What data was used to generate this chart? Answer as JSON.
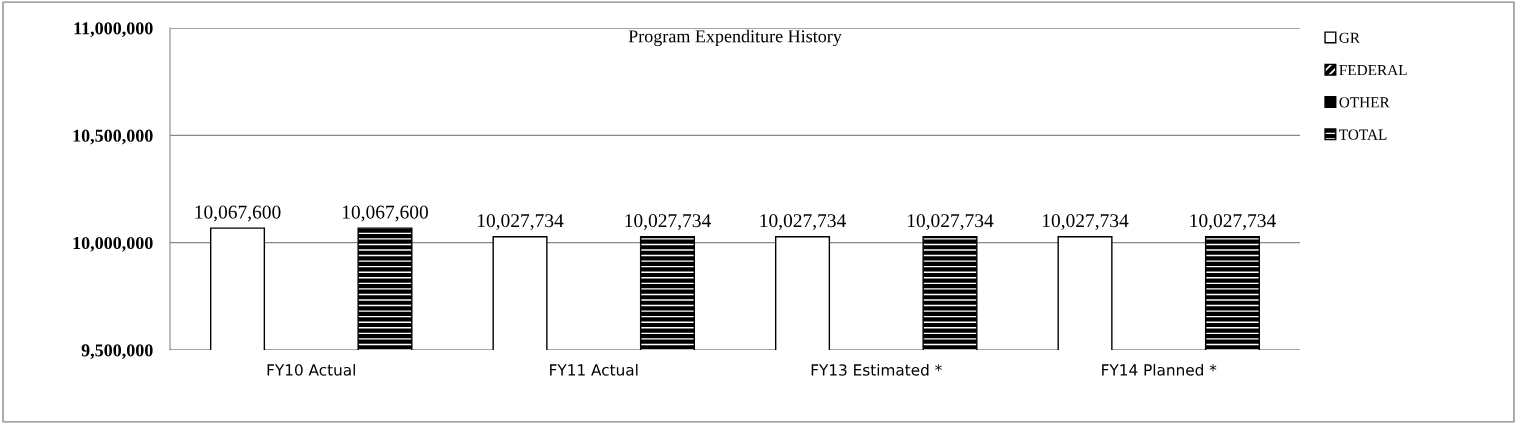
{
  "chart_data": {
    "type": "bar",
    "title": "Program Expenditure History",
    "categories": [
      "FY10 Actual",
      "FY11 Actual",
      "FY13 Estimated *",
      "FY14 Planned *"
    ],
    "series": [
      {
        "name": "GR",
        "color": "#ffffff",
        "values": [
          10067600,
          10027734,
          10027734,
          10027734
        ],
        "value_labels": [
          "10,067,600",
          "10,027,734",
          "10,027,734",
          "10,027,734"
        ]
      },
      {
        "name": "FEDERAL",
        "color": "#000000",
        "values": [
          null,
          null,
          null,
          null
        ]
      },
      {
        "name": "OTHER",
        "color": "#000000",
        "values": [
          null,
          null,
          null,
          null
        ]
      },
      {
        "name": "TOTAL",
        "color": "#000000",
        "values": [
          10067600,
          10027734,
          10027734,
          10027734
        ],
        "value_labels": [
          "10,067,600",
          "10,027,734",
          "10,027,734",
          "10,027,734"
        ]
      }
    ],
    "ylim": [
      9500000,
      11000000
    ],
    "yticks": [
      {
        "value": 9500000,
        "label": "9,500,000"
      },
      {
        "value": 10000000,
        "label": "10,000,000"
      },
      {
        "value": 10500000,
        "label": "10,500,000"
      },
      {
        "value": 11000000,
        "label": "11,000,000"
      }
    ],
    "grid": "y",
    "legend": "top right"
  }
}
